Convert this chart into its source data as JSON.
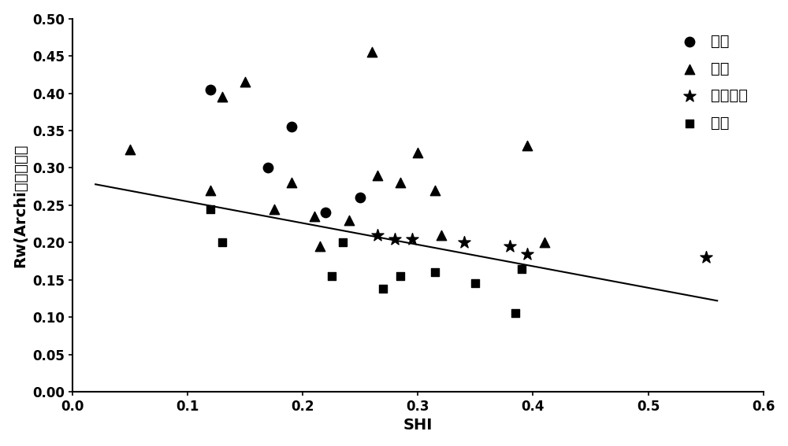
{
  "title": "",
  "xlabel": "SHI",
  "ylabel": "Rw(Archi公式推算）",
  "xlim": [
    0.0,
    0.6
  ],
  "ylim": [
    0.0,
    0.5
  ],
  "xticks": [
    0.0,
    0.1,
    0.2,
    0.3,
    0.4,
    0.5,
    0.6
  ],
  "yticks": [
    0.0,
    0.05,
    0.1,
    0.15,
    0.2,
    0.25,
    0.3,
    0.35,
    0.4,
    0.45,
    0.5
  ],
  "gas_layer": {
    "x": [
      0.12,
      0.17,
      0.19,
      0.22,
      0.25
    ],
    "y": [
      0.405,
      0.3,
      0.355,
      0.24,
      0.26
    ],
    "label": "气层",
    "marker": "o",
    "color": "black",
    "size": 80
  },
  "oil_layer": {
    "x": [
      0.05,
      0.12,
      0.13,
      0.15,
      0.175,
      0.19,
      0.21,
      0.215,
      0.24,
      0.26,
      0.265,
      0.285,
      0.3,
      0.315,
      0.32,
      0.395,
      0.41
    ],
    "y": [
      0.325,
      0.27,
      0.395,
      0.415,
      0.245,
      0.28,
      0.235,
      0.195,
      0.23,
      0.455,
      0.29,
      0.28,
      0.32,
      0.27,
      0.21,
      0.33,
      0.2
    ],
    "label": "油层",
    "marker": "^",
    "color": "black",
    "size": 80
  },
  "oil_water_layer": {
    "x": [
      0.265,
      0.28,
      0.295,
      0.34,
      0.38,
      0.395,
      0.55
    ],
    "y": [
      0.21,
      0.205,
      0.205,
      0.2,
      0.195,
      0.185,
      0.18
    ],
    "label": "油水同层",
    "marker": "*",
    "color": "black",
    "size": 130
  },
  "water_layer": {
    "x": [
      0.12,
      0.13,
      0.225,
      0.235,
      0.27,
      0.285,
      0.315,
      0.35,
      0.385,
      0.39
    ],
    "y": [
      0.245,
      0.2,
      0.155,
      0.2,
      0.138,
      0.155,
      0.16,
      0.145,
      0.105,
      0.165
    ],
    "label": "水层",
    "marker": "s",
    "color": "black",
    "size": 55
  },
  "trendline": {
    "x": [
      0.02,
      0.56
    ],
    "y": [
      0.278,
      0.122
    ],
    "color": "black",
    "linewidth": 1.5
  },
  "background_color": "#ffffff",
  "legend_fontsize": 14,
  "axis_label_fontsize": 14,
  "tick_fontsize": 12,
  "font_color": "black"
}
